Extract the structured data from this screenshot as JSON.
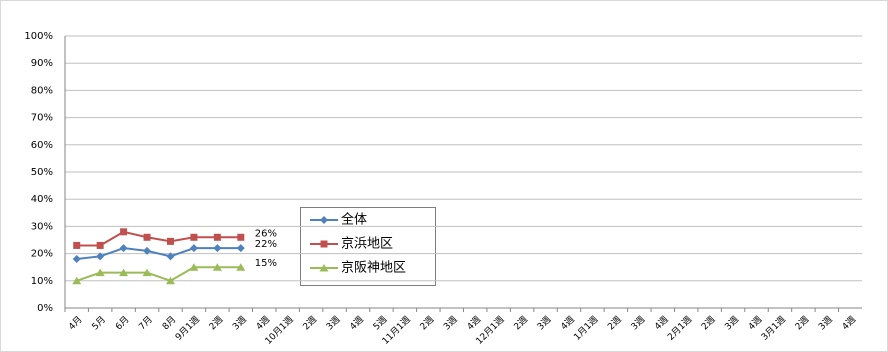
{
  "chart_data": {
    "type": "line",
    "categories": [
      "4月",
      "5月",
      "6月",
      "7月",
      "8月",
      "9月1週",
      "2週",
      "3週",
      "4週",
      "10月1週",
      "2週",
      "3週",
      "4週",
      "5週",
      "11月1週",
      "2週",
      "3週",
      "4週",
      "12月1週",
      "2週",
      "3週",
      "4週",
      "1月1週",
      "2週",
      "3週",
      "4週",
      "2月1週",
      "2週",
      "3週",
      "4週",
      "3月1週",
      "2週",
      "3週",
      "4週"
    ],
    "series": [
      {
        "name": "全体",
        "color": "#4f81bd",
        "marker": "diamond",
        "values": [
          18,
          19,
          22,
          21,
          19,
          22,
          22,
          22,
          null,
          null,
          null,
          null,
          null,
          null,
          null,
          null,
          null,
          null,
          null,
          null,
          null,
          null,
          null,
          null,
          null,
          null,
          null,
          null,
          null,
          null,
          null,
          null,
          null,
          null
        ],
        "value_labels": [
          null,
          null,
          null,
          null,
          null,
          null,
          null,
          "22%",
          null,
          null,
          null,
          null,
          null,
          null,
          null,
          null,
          null,
          null,
          null,
          null,
          null,
          null,
          null,
          null,
          null,
          null,
          null,
          null,
          null,
          null,
          null,
          null,
          null,
          null
        ]
      },
      {
        "name": "京浜地区",
        "color": "#c0504d",
        "marker": "square",
        "values": [
          23,
          23,
          28,
          26,
          24.5,
          26,
          26,
          26,
          null,
          null,
          null,
          null,
          null,
          null,
          null,
          null,
          null,
          null,
          null,
          null,
          null,
          null,
          null,
          null,
          null,
          null,
          null,
          null,
          null,
          null,
          null,
          null,
          null,
          null
        ],
        "value_labels": [
          null,
          null,
          null,
          null,
          null,
          null,
          null,
          "26%",
          null,
          null,
          null,
          null,
          null,
          null,
          null,
          null,
          null,
          null,
          null,
          null,
          null,
          null,
          null,
          null,
          null,
          null,
          null,
          null,
          null,
          null,
          null,
          null,
          null,
          null
        ]
      },
      {
        "name": "京阪神地区",
        "color": "#9bbb59",
        "marker": "triangle",
        "values": [
          10,
          13,
          13,
          13,
          10,
          15,
          15,
          15,
          null,
          null,
          null,
          null,
          null,
          null,
          null,
          null,
          null,
          null,
          null,
          null,
          null,
          null,
          null,
          null,
          null,
          null,
          null,
          null,
          null,
          null,
          null,
          null,
          null,
          null
        ],
        "value_labels": [
          null,
          null,
          null,
          null,
          null,
          null,
          null,
          "15%",
          null,
          null,
          null,
          null,
          null,
          null,
          null,
          null,
          null,
          null,
          null,
          null,
          null,
          null,
          null,
          null,
          null,
          null,
          null,
          null,
          null,
          null,
          null,
          null,
          null,
          null
        ]
      }
    ],
    "ylim": [
      0,
      100
    ],
    "yticks": [
      {
        "value": 0,
        "label": "0%"
      },
      {
        "value": 10,
        "label": "10%"
      },
      {
        "value": 20,
        "label": "20%"
      },
      {
        "value": 30,
        "label": "30%"
      },
      {
        "value": 40,
        "label": "40%"
      },
      {
        "value": 50,
        "label": "50%"
      },
      {
        "value": 60,
        "label": "60%"
      },
      {
        "value": 70,
        "label": "70%"
      },
      {
        "value": 80,
        "label": "80%"
      },
      {
        "value": 90,
        "label": "90%"
      },
      {
        "value": 100,
        "label": "100%"
      }
    ],
    "grid": true
  }
}
